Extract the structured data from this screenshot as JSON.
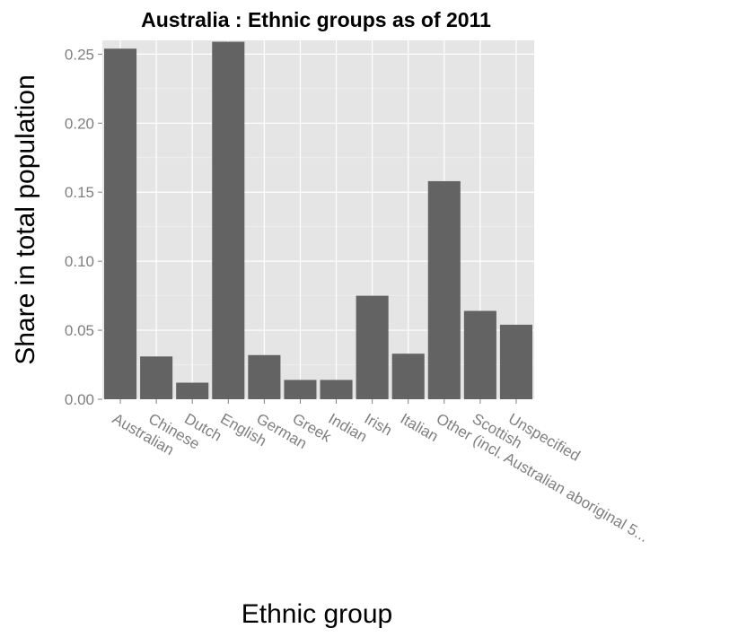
{
  "chart_data": {
    "type": "bar",
    "title": "Australia : Ethnic groups as of 2011",
    "xlabel": "Ethnic group",
    "ylabel": "Share in total population",
    "categories": [
      "Australian",
      "Chinese",
      "Dutch",
      "English",
      "German",
      "Greek",
      "Indian",
      "Irish",
      "Italian",
      "Other (incl. Australian aboriginal 5...",
      "Scottish",
      "Unspecified"
    ],
    "values": [
      0.254,
      0.031,
      0.012,
      0.259,
      0.032,
      0.014,
      0.014,
      0.075,
      0.033,
      0.158,
      0.064,
      0.054
    ],
    "y_ticks": [
      "0.00",
      "0.05",
      "0.10",
      "0.15",
      "0.20",
      "0.25"
    ],
    "ylim": [
      0,
      0.26
    ],
    "grid": true,
    "colors": {
      "bar": "#636363",
      "panel": "#e5e5e5",
      "grid": "#ffffff"
    }
  }
}
